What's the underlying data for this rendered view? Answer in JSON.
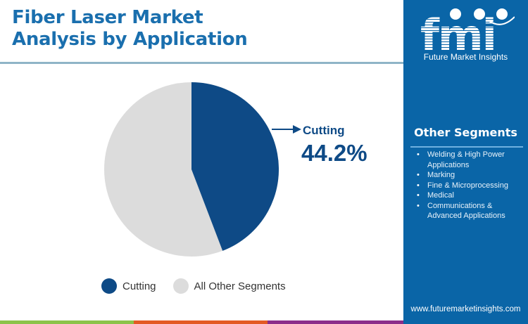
{
  "title": {
    "line1": "Fiber Laser Market",
    "line2": "Analysis by Application"
  },
  "chart_data": {
    "type": "pie",
    "title": "Fiber Laser Market Analysis by Application",
    "categories": [
      "Cutting",
      "All Other Segments"
    ],
    "values": [
      44.2,
      55.8
    ],
    "colors": [
      "#0e4a86",
      "#dcdcdc"
    ],
    "start_angle_deg": 0,
    "direction": "clockwise",
    "annotations": [
      {
        "label": "Cutting",
        "value": "44.2%"
      }
    ],
    "legend_position": "bottom"
  },
  "callout": {
    "label": "Cutting",
    "value": "44.2%"
  },
  "legend": {
    "items": [
      {
        "label": "Cutting",
        "color": "#0e4a86"
      },
      {
        "label": "All Other Segments",
        "color": "#dcdcdc"
      }
    ]
  },
  "panel": {
    "logo_text": "fmi",
    "logo_subtitle": "Future Market Insights",
    "heading": "Other Segments",
    "items": [
      "Welding & High Power Applications",
      "Marking",
      "Fine & Microprocessing",
      "Medical",
      "Communications & Advanced Applications"
    ],
    "url": "www.futuremarketinsights.com"
  },
  "colors": {
    "title": "#1a6fae",
    "panel_bg": "#0a65a7",
    "accent_dark": "#0e4a86",
    "bar_green": "#8bc34a",
    "bar_orange": "#e35a24",
    "bar_purple": "#8b2d8a"
  }
}
